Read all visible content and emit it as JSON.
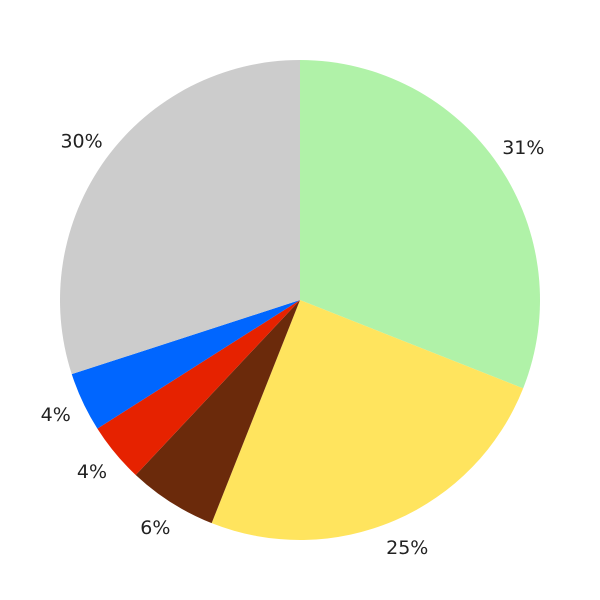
{
  "chart_data": {
    "type": "pie",
    "title": "",
    "start_angle": "top",
    "direction": "clockwise",
    "slices": [
      {
        "label": "31%",
        "value": 31,
        "color": "#b0f2a8"
      },
      {
        "label": "25%",
        "value": 25,
        "color": "#ffe45e"
      },
      {
        "label": "6%",
        "value": 6,
        "color": "#6b2a0b"
      },
      {
        "label": "4%",
        "value": 4,
        "color": "#e62200"
      },
      {
        "label": "4%",
        "value": 4,
        "color": "#0066ff"
      },
      {
        "label": "30%",
        "value": 30,
        "color": "#cccccc"
      }
    ]
  }
}
